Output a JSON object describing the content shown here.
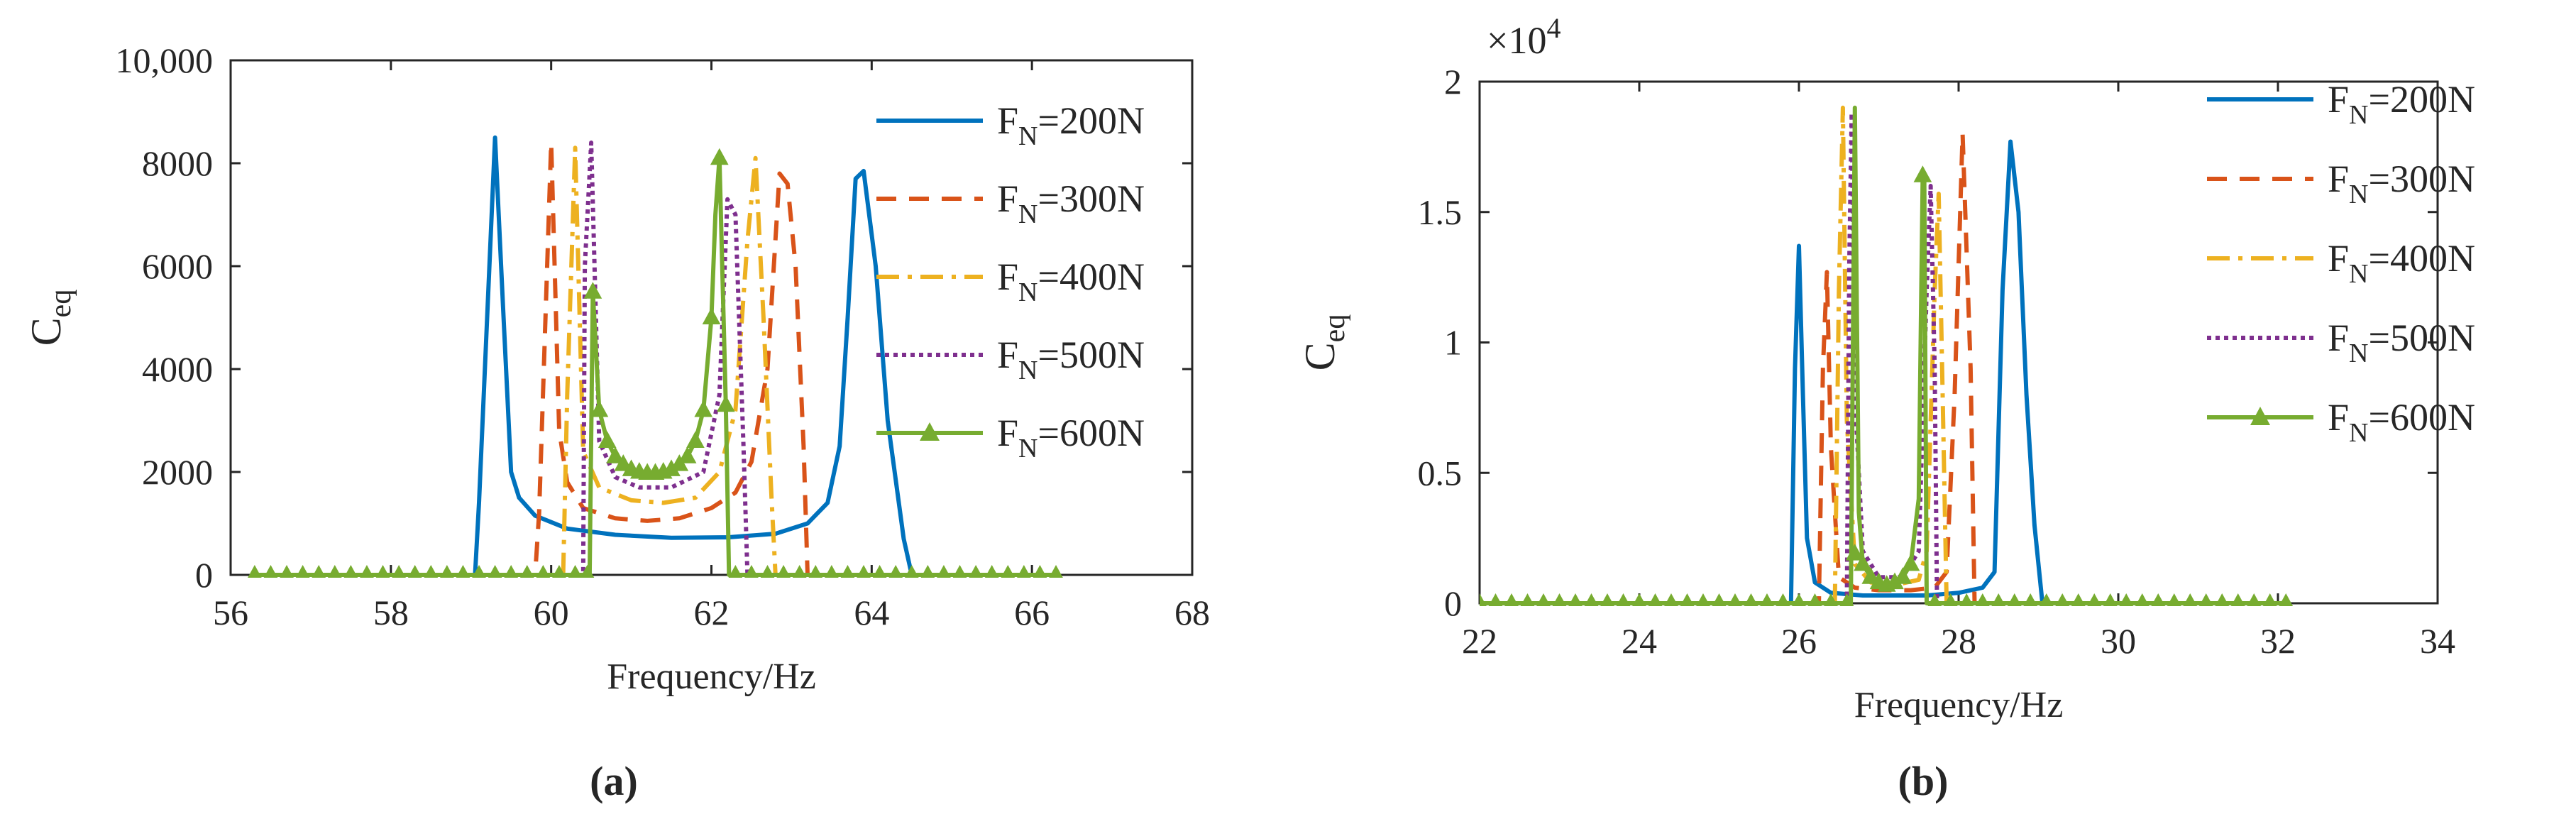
{
  "chart_data": [
    {
      "panel": "(a)",
      "type": "line",
      "xlabel": "Frequency/Hz",
      "ylabel": "C",
      "ylabel_sub": "eq",
      "xlim": [
        56,
        68
      ],
      "ylim": [
        0,
        10000
      ],
      "xticks": [
        56,
        58,
        60,
        62,
        64,
        66,
        68
      ],
      "xtick_labels": [
        "56",
        "58",
        "60",
        "62",
        "64",
        "66",
        "68"
      ],
      "yticks": [
        0,
        2000,
        4000,
        6000,
        8000,
        10000
      ],
      "ytick_labels": [
        "0",
        "2000",
        "4000",
        "6000",
        "8000",
        "10,000"
      ],
      "exponent_label": "",
      "grid": false,
      "legend_position": "top-right",
      "series": [
        {
          "name": "F_N=200N",
          "label_main": "F",
          "label_sub": "N",
          "label_rest": "=200N",
          "color": "#0072BD",
          "dash": "solid",
          "marker": "none",
          "x": [
            56.3,
            59.05,
            59.1,
            59.3,
            59.4,
            59.5,
            59.6,
            59.8,
            60.2,
            60.8,
            61.5,
            62.2,
            62.8,
            63.2,
            63.45,
            63.6,
            63.7,
            63.8,
            63.9,
            64.05,
            64.2,
            64.4,
            64.5,
            64.6,
            66.3
          ],
          "y": [
            0,
            0,
            1400,
            8500,
            5200,
            2000,
            1500,
            1150,
            900,
            780,
            720,
            730,
            800,
            1000,
            1400,
            2500,
            5000,
            7700,
            7850,
            6000,
            3000,
            700,
            0,
            0,
            0
          ]
        },
        {
          "name": "F_N=300N",
          "label_main": "F",
          "label_sub": "N",
          "label_rest": "=300N",
          "color": "#D95319",
          "dash": "28 18",
          "marker": "none",
          "x": [
            56.3,
            59.8,
            59.85,
            60.0,
            60.1,
            60.2,
            60.4,
            60.8,
            61.2,
            61.6,
            62.0,
            62.3,
            62.5,
            62.7,
            62.85,
            62.95,
            63.05,
            63.15,
            63.2,
            66.3
          ],
          "y": [
            0,
            0,
            1200,
            8400,
            2800,
            1800,
            1300,
            1100,
            1050,
            1100,
            1300,
            1600,
            2200,
            4000,
            7800,
            7600,
            6000,
            2500,
            0,
            0
          ]
        },
        {
          "name": "F_N=400N",
          "label_main": "F",
          "label_sub": "N",
          "label_rest": "=400N",
          "color": "#EDB120",
          "dash": "32 12 6 12",
          "marker": "none",
          "x": [
            56.3,
            60.15,
            60.2,
            60.3,
            60.4,
            60.6,
            61.0,
            61.4,
            61.8,
            62.1,
            62.3,
            62.45,
            62.55,
            62.65,
            62.75,
            62.8,
            66.3
          ],
          "y": [
            0,
            0,
            3500,
            8300,
            2400,
            1700,
            1450,
            1400,
            1500,
            2000,
            3200,
            6500,
            8100,
            5000,
            1500,
            0,
            0
          ]
        },
        {
          "name": "F_N=500N",
          "label_main": "F",
          "label_sub": "N",
          "label_rest": "=500N",
          "color": "#7E2F8E",
          "dash": "6 6",
          "marker": "none",
          "x": [
            56.3,
            60.4,
            60.42,
            60.5,
            60.6,
            60.8,
            61.1,
            61.5,
            61.9,
            62.1,
            62.2,
            62.3,
            62.4,
            62.45,
            66.3
          ],
          "y": [
            0,
            0,
            6000,
            8400,
            2600,
            1900,
            1700,
            1700,
            2000,
            3500,
            7300,
            7000,
            2500,
            0,
            0
          ]
        },
        {
          "name": "F_N=600N",
          "label_main": "F",
          "label_sub": "N",
          "label_rest": "=600N",
          "color": "#77AC30",
          "dash": "solid",
          "marker": "triangle",
          "x": [
            56.3,
            60.48,
            60.52,
            60.6,
            60.7,
            60.8,
            60.9,
            61.0,
            61.1,
            61.2,
            61.3,
            61.4,
            61.5,
            61.6,
            61.7,
            61.8,
            61.9,
            62.0,
            62.05,
            62.1,
            62.18,
            62.22,
            66.3
          ],
          "y": [
            0,
            0,
            5500,
            3200,
            2600,
            2300,
            2150,
            2050,
            2000,
            1980,
            1980,
            2000,
            2050,
            2150,
            2300,
            2600,
            3200,
            5000,
            7000,
            8100,
            3300,
            0,
            0
          ],
          "marker_x": [
            56.3,
            56.5,
            56.7,
            56.9,
            57.1,
            57.3,
            57.5,
            57.7,
            57.9,
            58.1,
            58.3,
            58.5,
            58.7,
            58.9,
            59.1,
            59.3,
            59.5,
            59.7,
            59.9,
            60.1,
            60.3,
            60.45,
            60.52,
            60.6,
            60.7,
            60.8,
            60.9,
            61.0,
            61.1,
            61.2,
            61.3,
            61.4,
            61.5,
            61.6,
            61.7,
            61.8,
            61.9,
            62.0,
            62.1,
            62.18,
            62.3,
            62.5,
            62.7,
            62.9,
            63.1,
            63.3,
            63.5,
            63.7,
            63.9,
            64.1,
            64.3,
            64.5,
            64.7,
            64.9,
            65.1,
            65.3,
            65.5,
            65.7,
            65.9,
            66.1,
            66.3
          ],
          "marker_y": [
            0,
            0,
            0,
            0,
            0,
            0,
            0,
            0,
            0,
            0,
            0,
            0,
            0,
            0,
            0,
            0,
            0,
            0,
            0,
            0,
            0,
            0,
            5500,
            3200,
            2600,
            2300,
            2150,
            2050,
            2000,
            1980,
            1980,
            2000,
            2050,
            2150,
            2300,
            2600,
            3200,
            5000,
            8100,
            3300,
            0,
            0,
            0,
            0,
            0,
            0,
            0,
            0,
            0,
            0,
            0,
            0,
            0,
            0,
            0,
            0,
            0,
            0,
            0,
            0,
            0
          ]
        }
      ]
    },
    {
      "panel": "(b)",
      "type": "line",
      "xlabel": "Frequency/Hz",
      "ylabel": "C",
      "ylabel_sub": "eq",
      "xlim": [
        22,
        34
      ],
      "ylim": [
        0,
        2
      ],
      "xticks": [
        22,
        24,
        26,
        28,
        30,
        32,
        34
      ],
      "xtick_labels": [
        "22",
        "24",
        "26",
        "28",
        "30",
        "32",
        "34"
      ],
      "yticks": [
        0,
        0.5,
        1,
        1.5,
        2
      ],
      "ytick_labels": [
        "0",
        "0.5",
        "1",
        "1.5",
        "2"
      ],
      "exponent_label": "×10",
      "exponent_power": "4",
      "grid": false,
      "legend_position": "top-right",
      "series": [
        {
          "name": "F_N=200N",
          "label_main": "F",
          "label_sub": "N",
          "label_rest": "=200N",
          "color": "#0072BD",
          "dash": "solid",
          "marker": "none",
          "x": [
            22.0,
            25.9,
            25.95,
            26.0,
            26.05,
            26.1,
            26.2,
            26.4,
            26.8,
            27.2,
            27.6,
            28.0,
            28.3,
            28.45,
            28.55,
            28.65,
            28.75,
            28.85,
            28.95,
            29.05,
            32.1
          ],
          "y": [
            0,
            0,
            0.9,
            1.37,
            0.8,
            0.25,
            0.08,
            0.04,
            0.03,
            0.03,
            0.03,
            0.04,
            0.06,
            0.12,
            1.2,
            1.77,
            1.5,
            0.8,
            0.3,
            0,
            0
          ]
        },
        {
          "name": "F_N=300N",
          "label_main": "F",
          "label_sub": "N",
          "label_rest": "=300N",
          "color": "#D95319",
          "dash": "28 18",
          "marker": "none",
          "x": [
            22.0,
            26.25,
            26.3,
            26.35,
            26.4,
            26.5,
            26.7,
            27.0,
            27.4,
            27.7,
            27.85,
            27.95,
            28.05,
            28.15,
            28.2,
            32.1
          ],
          "y": [
            0,
            0,
            0.9,
            1.27,
            0.6,
            0.1,
            0.06,
            0.05,
            0.05,
            0.06,
            0.12,
            0.8,
            1.8,
            0.9,
            0,
            0
          ]
        },
        {
          "name": "F_N=400N",
          "label_main": "F",
          "label_sub": "N",
          "label_rest": "=400N",
          "color": "#EDB120",
          "dash": "32 12 6 12",
          "marker": "none",
          "x": [
            22.0,
            26.45,
            26.5,
            26.55,
            26.6,
            26.7,
            26.9,
            27.2,
            27.5,
            27.6,
            27.7,
            27.75,
            27.8,
            27.85,
            32.1
          ],
          "y": [
            0,
            0,
            1.2,
            1.9,
            0.7,
            0.15,
            0.08,
            0.07,
            0.09,
            0.2,
            1.2,
            1.57,
            0.8,
            0,
            0
          ]
        },
        {
          "name": "F_N=500N",
          "label_main": "F",
          "label_sub": "N",
          "label_rest": "=500N",
          "color": "#7E2F8E",
          "dash": "6 6",
          "marker": "none",
          "x": [
            22.0,
            26.6,
            26.63,
            26.66,
            26.7,
            26.8,
            27.0,
            27.3,
            27.5,
            27.6,
            27.65,
            27.7,
            27.73,
            32.1
          ],
          "y": [
            0,
            0,
            1.3,
            1.88,
            0.8,
            0.2,
            0.1,
            0.1,
            0.2,
            1.2,
            1.6,
            0.9,
            0,
            0
          ]
        },
        {
          "name": "F_N=600N",
          "label_main": "F",
          "label_sub": "N",
          "label_rest": "=600N",
          "color": "#77AC30",
          "dash": "solid",
          "marker": "triangle",
          "x": [
            22.0,
            26.65,
            26.7,
            26.75,
            26.8,
            26.9,
            27.0,
            27.1,
            27.2,
            27.3,
            27.4,
            27.5,
            27.55,
            27.57,
            27.6,
            32.1
          ],
          "y": [
            0,
            0,
            1.9,
            0.35,
            0.15,
            0.1,
            0.08,
            0.07,
            0.08,
            0.1,
            0.15,
            0.4,
            1.64,
            1.64,
            0,
            0
          ],
          "marker_x": [
            22.0,
            22.2,
            22.4,
            22.6,
            22.8,
            23.0,
            23.2,
            23.4,
            23.6,
            23.8,
            24.0,
            24.2,
            24.4,
            24.6,
            24.8,
            25.0,
            25.2,
            25.4,
            25.6,
            25.8,
            26.0,
            26.2,
            26.4,
            26.6,
            26.7,
            26.8,
            26.9,
            27.0,
            27.1,
            27.2,
            27.3,
            27.4,
            27.55,
            27.7,
            27.9,
            28.1,
            28.3,
            28.5,
            28.7,
            28.9,
            29.1,
            29.3,
            29.5,
            29.7,
            29.9,
            30.1,
            30.3,
            30.5,
            30.7,
            30.9,
            31.1,
            31.3,
            31.5,
            31.7,
            31.9,
            32.1
          ],
          "marker_y": [
            0,
            0,
            0,
            0,
            0,
            0,
            0,
            0,
            0,
            0,
            0,
            0,
            0,
            0,
            0,
            0,
            0,
            0,
            0,
            0,
            0,
            0,
            0,
            0,
            0.19,
            0.15,
            0.1,
            0.08,
            0.07,
            0.08,
            0.1,
            0.15,
            1.64,
            0,
            0,
            0,
            0,
            0,
            0,
            0,
            0,
            0,
            0,
            0,
            0,
            0,
            0,
            0,
            0,
            0,
            0,
            0,
            0,
            0,
            0,
            0
          ]
        }
      ]
    }
  ]
}
